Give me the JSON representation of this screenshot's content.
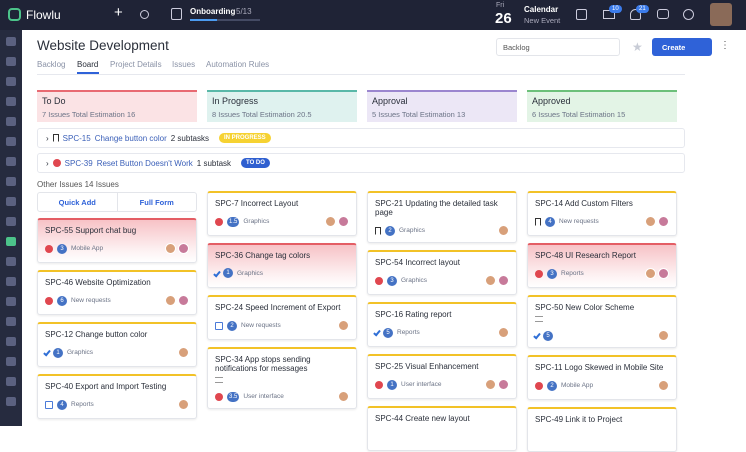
{
  "topbar": {
    "brand": "Flowlu",
    "onboarding": "Onboarding",
    "onboarding_progress": "5/13",
    "day_name": "Fri",
    "day_number": "26",
    "calendar_title": "Calendar",
    "calendar_action": "New Event",
    "badges": [
      "10",
      "21"
    ]
  },
  "header": {
    "title": "Website Development",
    "tabs": [
      "Backlog",
      "Board",
      "Project Details",
      "Issues",
      "Automation Rules"
    ],
    "active_tab": 1,
    "sprint_select": "Backlog",
    "create_button": "Create"
  },
  "columns": [
    {
      "name": "To Do",
      "issues": "7 Issues",
      "estimation": "Total Estimation 16",
      "color": "#fbe3e5",
      "accent": "#e86a72"
    },
    {
      "name": "In Progress",
      "issues": "8 Issues",
      "estimation": "Total Estimation 20.5",
      "color": "#dff2ef",
      "accent": "#59b8a8"
    },
    {
      "name": "Approval",
      "issues": "5 Issues",
      "estimation": "Total Estimation 13",
      "color": "#ece7f6",
      "accent": "#9b86cf"
    },
    {
      "name": "Approved",
      "issues": "6 Issues",
      "estimation": "Total Estimation 15",
      "color": "#e3f4e6",
      "accent": "#6cc07a"
    }
  ],
  "swimlanes": [
    {
      "key": "SPC-15",
      "title": "Change button color",
      "subtasks": "2 subtasks",
      "status": "IN PROGRESS",
      "status_color": "#f6d232"
    },
    {
      "key": "SPC-39",
      "title": "Reset Button Doesn't Work",
      "subtasks": "1 subtask",
      "status": "TO DO",
      "status_color": "#2f5fd0"
    }
  ],
  "other_issues": {
    "label": "Other Issues",
    "count": "14 Issues",
    "quick_add": "Quick Add",
    "full_form": "Full Form"
  },
  "cards": [
    [
      {
        "key": "SPC-55",
        "title": "Support chat bug",
        "icon": "bug",
        "points": "3",
        "tag": "Mobile App",
        "highlighted": true,
        "assignees": 2
      },
      {
        "key": "SPC-46",
        "title": "Website Optimization",
        "icon": "bug",
        "points": "6",
        "tag": "New requests",
        "assignees": 2
      },
      {
        "key": "SPC-12",
        "title": "Change button color",
        "icon": "check",
        "points": "1",
        "tag": "Graphics",
        "assignees": 1
      },
      {
        "key": "SPC-40",
        "title": "Export and Import Testing",
        "icon": "subtask",
        "points": "4",
        "tag": "Reports",
        "assignees": 1
      }
    ],
    [
      {
        "key": "SPC-7",
        "title": "Incorrect Layout",
        "icon": "bug",
        "points": "1.5",
        "tag": "Graphics",
        "assignees": 2
      },
      {
        "key": "SPC-36",
        "title": "Change tag colors",
        "icon": "check",
        "points": "1",
        "tag": "Graphics",
        "highlighted": true,
        "assignees": 0
      },
      {
        "key": "SPC-24",
        "title": "Speed Increment of Export",
        "icon": "subtask",
        "points": "2",
        "tag": "New requests",
        "assignees": 1
      },
      {
        "key": "SPC-34",
        "title": "App stops sending notifications for messages",
        "icon": "bug",
        "points": "3.5",
        "tag": "User interface",
        "notes": true,
        "assignees": 1
      }
    ],
    [
      {
        "key": "SPC-21",
        "title": "Updating the detailed task page",
        "icon": "story",
        "points": "2",
        "tag": "Graphics",
        "assignees": 1
      },
      {
        "key": "SPC-54",
        "title": "Incorrect layout",
        "icon": "bug",
        "points": "3",
        "tag": "Graphics",
        "assignees": 2
      },
      {
        "key": "SPC-16",
        "title": "Rating report",
        "icon": "check",
        "points": "5",
        "tag": "Reports",
        "assignees": 1
      },
      {
        "key": "SPC-25",
        "title": "Visual Enhancement",
        "icon": "bug",
        "points": "1",
        "tag": "User interface",
        "assignees": 2
      },
      {
        "key": "SPC-44",
        "title": "Create new layout"
      }
    ],
    [
      {
        "key": "SPC-14",
        "title": "Add Custom Filters",
        "icon": "story",
        "points": "4",
        "tag": "New requests",
        "assignees": 2
      },
      {
        "key": "SPC-48",
        "title": "UI Research Report",
        "icon": "bug",
        "points": "3",
        "tag": "Reports",
        "highlighted": true,
        "assignees": 2
      },
      {
        "key": "SPC-50",
        "title": "New Color Scheme",
        "icon": "check",
        "points": "5",
        "notes": true,
        "assignees": 1
      },
      {
        "key": "SPC-11",
        "title": "Logo Skewed in Mobile Site",
        "icon": "bug",
        "points": "2",
        "tag": "Mobile App",
        "assignees": 1
      },
      {
        "key": "SPC-49",
        "title": "Link it to Project"
      }
    ]
  ]
}
